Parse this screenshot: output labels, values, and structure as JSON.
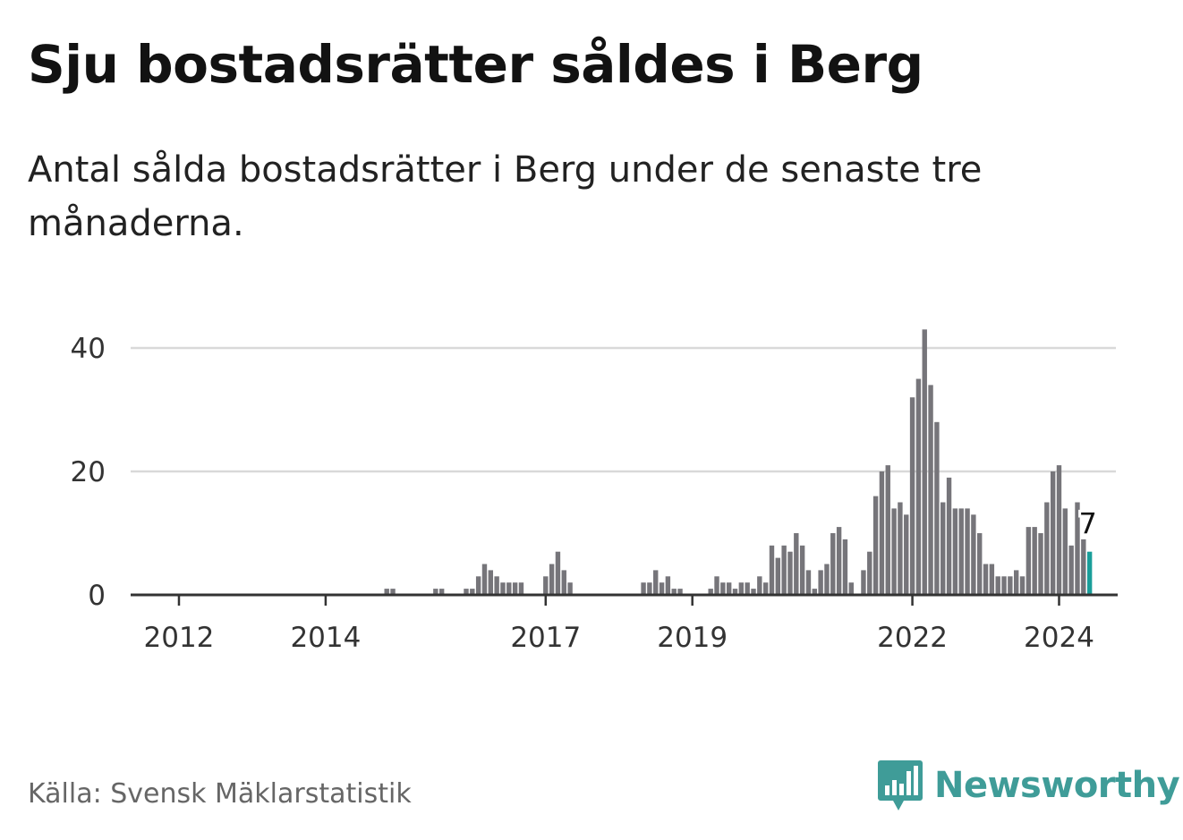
{
  "title": "Sju bostadsrätter såldes i Berg",
  "subtitle": "Antal sålda bostadsrätter i Berg under de senaste tre månaderna.",
  "source": "Källa: Svensk Mäklarstatistik",
  "brand": {
    "name": "Newsworthy",
    "color": "#3f9c98"
  },
  "chart_data": {
    "type": "bar",
    "title": "Sju bostadsrätter såldes i Berg",
    "xlabel": "",
    "ylabel": "",
    "ylim": [
      0,
      45
    ],
    "yticks": [
      0,
      20,
      40
    ],
    "xtick_labels": [
      "2012",
      "2014",
      "2017",
      "2019",
      "2022",
      "2024"
    ],
    "xtick_index": [
      6,
      30,
      66,
      90,
      126,
      150
    ],
    "bar_color": "#76757a",
    "highlight_color": "#1a9e9a",
    "highlight_label": "7",
    "start": "2011-07",
    "end": "2024-02",
    "values": [
      0,
      0,
      0,
      0,
      0,
      0,
      0,
      0,
      0,
      0,
      0,
      0,
      0,
      0,
      0,
      0,
      0,
      0,
      0,
      0,
      0,
      0,
      0,
      0,
      0,
      0,
      0,
      0,
      0,
      0,
      0,
      0,
      0,
      0,
      0,
      0,
      0,
      0,
      0,
      0,
      1,
      1,
      0,
      0,
      0,
      0,
      0,
      0,
      1,
      1,
      0,
      0,
      0,
      1,
      1,
      3,
      5,
      4,
      3,
      2,
      2,
      2,
      2,
      0,
      0,
      0,
      3,
      5,
      7,
      4,
      2,
      0,
      0,
      0,
      0,
      0,
      0,
      0,
      0,
      0,
      0,
      0,
      2,
      2,
      4,
      2,
      3,
      1,
      1,
      0,
      0,
      0,
      0,
      1,
      3,
      2,
      2,
      1,
      2,
      2,
      1,
      3,
      2,
      8,
      6,
      8,
      7,
      10,
      8,
      4,
      1,
      4,
      5,
      10,
      11,
      9,
      2,
      0,
      4,
      7,
      16,
      20,
      21,
      14,
      15,
      13,
      32,
      35,
      43,
      34,
      28,
      15,
      19,
      14,
      14,
      14,
      13,
      10,
      5,
      5,
      3,
      3,
      3,
      4,
      3,
      11,
      11,
      10,
      15,
      20,
      21,
      14,
      8,
      15,
      9,
      7
    ]
  }
}
